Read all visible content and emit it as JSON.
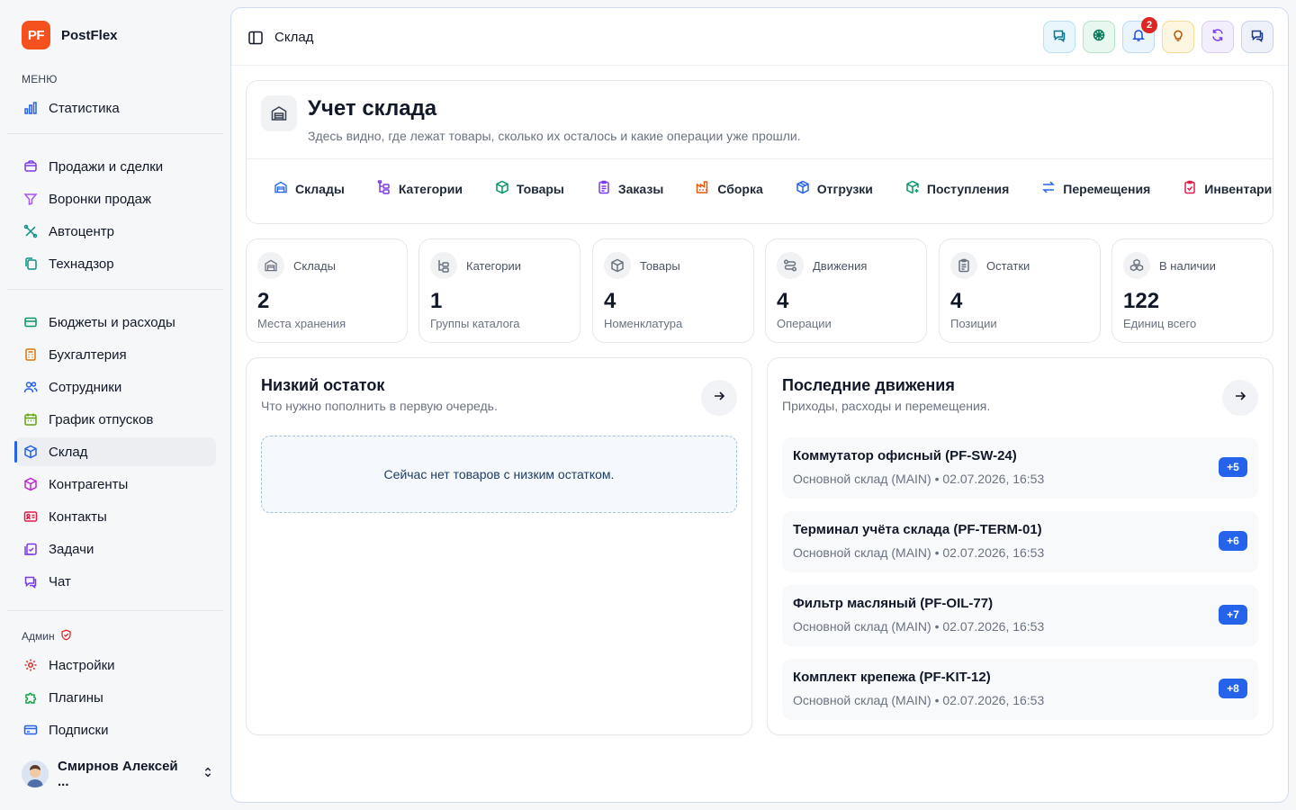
{
  "brand": {
    "logo": "PF",
    "name": "PostFlex",
    "color": "#f4511e"
  },
  "sidebar": {
    "menu_caption": "МЕНЮ",
    "admin_caption": "Админ",
    "items": [
      {
        "label": "Статистика",
        "icon": "bar-chart-icon",
        "color": "#2563eb"
      },
      {
        "label": "Продажи и сделки",
        "icon": "wallet-icon",
        "color": "#7c3aed"
      },
      {
        "label": "Воронки продаж",
        "icon": "funnel-icon",
        "color": "#a855f7"
      },
      {
        "label": "Автоцентр",
        "icon": "wrench-icon",
        "color": "#0d9488"
      },
      {
        "label": "Технадзор",
        "icon": "clipboard-copy-icon",
        "color": "#0d9488"
      },
      {
        "label": "Бюджеты и расходы",
        "icon": "card-icon",
        "color": "#059669"
      },
      {
        "label": "Бухгалтерия",
        "icon": "calculator-icon",
        "color": "#d97706"
      },
      {
        "label": "Сотрудники",
        "icon": "users-icon",
        "color": "#2563eb"
      },
      {
        "label": "График отпусков",
        "icon": "calendar-icon",
        "color": "#65a30d"
      },
      {
        "label": "Склад",
        "icon": "box-icon",
        "color": "#2563eb"
      },
      {
        "label": "Контрагенты",
        "icon": "package-icon",
        "color": "#c026d3"
      },
      {
        "label": "Контакты",
        "icon": "id-card-icon",
        "color": "#e11d48"
      },
      {
        "label": "Задачи",
        "icon": "task-icon",
        "color": "#7c3aed"
      },
      {
        "label": "Чат",
        "icon": "chat-icon",
        "color": "#7c3aed"
      },
      {
        "label": "Настройки",
        "icon": "gear-icon",
        "color": "#dc2626"
      },
      {
        "label": "Плагины",
        "icon": "puzzle-icon",
        "color": "#16a34a"
      },
      {
        "label": "Подписки",
        "icon": "credit-card-icon",
        "color": "#2563eb"
      }
    ],
    "user": {
      "name": "Смирнов Алексей ..."
    }
  },
  "topbar": {
    "breadcrumb": "Склад",
    "notifications_count": "2"
  },
  "header": {
    "title": "Учет склада",
    "subtitle": "Здесь видно, где лежат товары, сколько их осталось и какие операции уже прошли.",
    "tabs": [
      {
        "label": "Склады",
        "icon": "warehouse-icon",
        "color": "#2563eb"
      },
      {
        "label": "Категории",
        "icon": "tree-icon",
        "color": "#7c3aed"
      },
      {
        "label": "Товары",
        "icon": "cube-icon",
        "color": "#059669"
      },
      {
        "label": "Заказы",
        "icon": "clipboard-icon",
        "color": "#7c3aed"
      },
      {
        "label": "Сборка",
        "icon": "factory-icon",
        "color": "#ea580c"
      },
      {
        "label": "Отгрузки",
        "icon": "package-out-icon",
        "color": "#2563eb"
      },
      {
        "label": "Поступления",
        "icon": "package-in-icon",
        "color": "#059669"
      },
      {
        "label": "Перемещения",
        "icon": "transfer-icon",
        "color": "#2563eb"
      },
      {
        "label": "Инвентаризация",
        "icon": "checklist-icon",
        "color": "#e11d48"
      }
    ]
  },
  "stats": [
    {
      "label": "Склады",
      "value": "2",
      "sub": "Места хранения",
      "icon": "warehouse-icon"
    },
    {
      "label": "Категории",
      "value": "1",
      "sub": "Группы каталога",
      "icon": "tree-icon"
    },
    {
      "label": "Товары",
      "value": "4",
      "sub": "Номенклатура",
      "icon": "cube-icon"
    },
    {
      "label": "Движения",
      "value": "4",
      "sub": "Операции",
      "icon": "route-icon"
    },
    {
      "label": "Остатки",
      "value": "4",
      "sub": "Позиции",
      "icon": "clipboard-icon"
    },
    {
      "label": "В наличии",
      "value": "122",
      "sub": "Единиц всего",
      "icon": "boxes-icon"
    }
  ],
  "low_stock": {
    "title": "Низкий остаток",
    "subtitle": "Что нужно пополнить в первую очередь.",
    "empty": "Сейчас нет товаров с низким остатком."
  },
  "movements": {
    "title": "Последние движения",
    "subtitle": "Приходы, расходы и перемещения.",
    "items": [
      {
        "name": "Коммутатор офисный (PF-SW-24)",
        "meta": "Основной склад (MAIN) • 02.07.2026, 16:53",
        "qty": "+5"
      },
      {
        "name": "Терминал учёта склада (PF-TERM-01)",
        "meta": "Основной склад (MAIN) • 02.07.2026, 16:53",
        "qty": "+6"
      },
      {
        "name": "Фильтр масляный (PF-OIL-77)",
        "meta": "Основной склад (MAIN) • 02.07.2026, 16:53",
        "qty": "+7"
      },
      {
        "name": "Комплект крепежа (PF-KIT-12)",
        "meta": "Основной склад (MAIN) • 02.07.2026, 16:53",
        "qty": "+8"
      }
    ]
  }
}
